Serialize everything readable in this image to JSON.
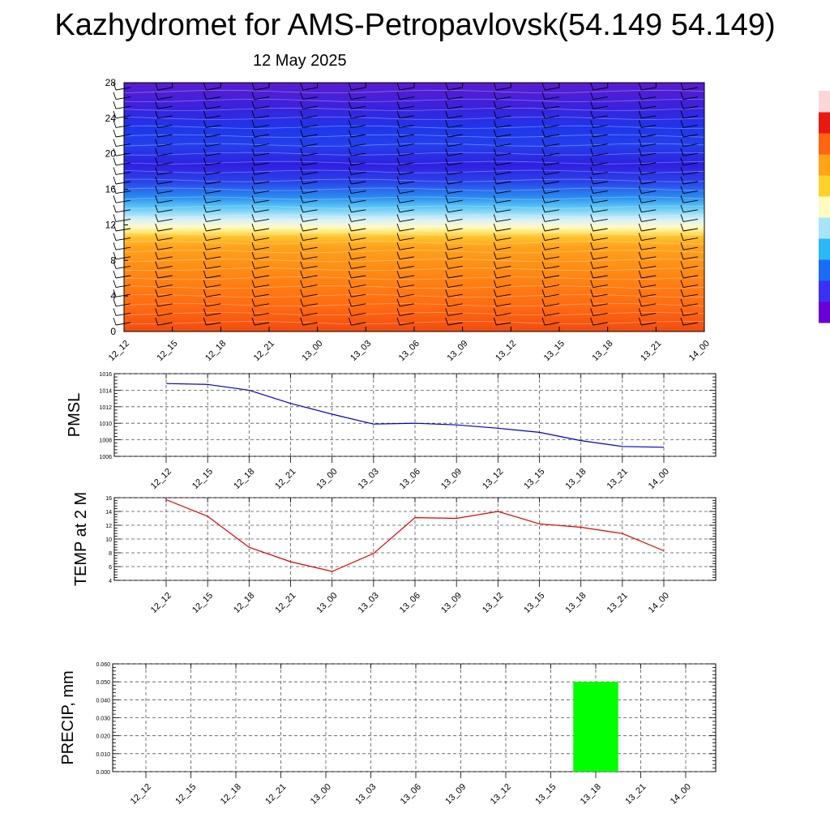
{
  "header": {
    "title": "Kazhydromet for AMS-Petropavlovsk(54.149 54.149)",
    "subtitle": "12 May 2025"
  },
  "time_labels": [
    "12_12",
    "12_15",
    "12_18",
    "12_21",
    "13_00",
    "13_03",
    "13_06",
    "13_09",
    "13_12",
    "13_15",
    "13_18",
    "13_21",
    "14_00"
  ],
  "chart_data": [
    {
      "type": "heatmap",
      "name": "cross-section",
      "x_categories": [
        "12_12",
        "12_15",
        "12_18",
        "12_21",
        "13_00",
        "13_03",
        "13_06",
        "13_09",
        "13_12",
        "13_15",
        "13_18",
        "13_21",
        "14_00"
      ],
      "ylim": [
        0,
        28
      ],
      "yticks": [
        0,
        4,
        8,
        12,
        16,
        20,
        24,
        28
      ],
      "colorbar": [
        "#6a00d8",
        "#3a32f0",
        "#1a6cf5",
        "#2cb8f5",
        "#a8e4f8",
        "#fffbbf",
        "#ffd12a",
        "#ffa319",
        "#ff6410",
        "#e8190f",
        "#fbd6d6"
      ],
      "colors": {
        "cold": "#2020e8",
        "warm": "#ff8a10",
        "freezing_line": "#fff7b0"
      }
    },
    {
      "type": "line",
      "name": "pmsl",
      "ylabel": "PMSL",
      "categories": [
        "12_12",
        "12_15",
        "12_18",
        "12_21",
        "13_00",
        "13_03",
        "13_06",
        "13_09",
        "13_12",
        "13_15",
        "13_18",
        "13_21",
        "14_00"
      ],
      "series": [
        {
          "values": [
            1014.8,
            1014.7,
            1014.0,
            1012.4,
            1011.1,
            1009.9,
            1010.0,
            1009.8,
            1009.4,
            1008.9,
            1007.9,
            1007.2,
            1007.1
          ],
          "color": "#0000cc"
        }
      ],
      "ylim": [
        1006,
        1016
      ],
      "yticks": [
        "1006",
        "1008",
        "1010",
        "1012",
        "1014",
        "1016"
      ],
      "grid": true
    },
    {
      "type": "line",
      "name": "temp",
      "ylabel": "TEMP at 2 M",
      "categories": [
        "12_12",
        "12_15",
        "12_18",
        "12_21",
        "13_00",
        "13_03",
        "13_06",
        "13_09",
        "13_12",
        "13_15",
        "13_18",
        "13_21",
        "14_00"
      ],
      "series": [
        {
          "values": [
            15.7,
            13.3,
            8.8,
            6.7,
            5.3,
            7.9,
            13.1,
            13.0,
            14.0,
            12.2,
            11.7,
            10.8,
            8.3
          ],
          "color": "#dd0000"
        }
      ],
      "ylim": [
        4,
        16
      ],
      "yticks": [
        "4",
        "6",
        "8",
        "10",
        "12",
        "14",
        "16"
      ],
      "grid": true
    },
    {
      "type": "bar",
      "name": "precip",
      "ylabel": "PRECIP, mm",
      "categories": [
        "12_12",
        "12_15",
        "12_18",
        "12_21",
        "13_00",
        "13_03",
        "13_06",
        "13_09",
        "13_12",
        "13_15",
        "13_18",
        "13_21",
        "14_00"
      ],
      "values": [
        0,
        0,
        0,
        0,
        0,
        0,
        0,
        0,
        0,
        0,
        0.05,
        0,
        0
      ],
      "ylim": [
        0,
        0.06
      ],
      "yticks": [
        "0.000",
        "0.010",
        "0.020",
        "0.030",
        "0.040",
        "0.050",
        "0.060"
      ],
      "bar_color": "#00ff00",
      "grid": true
    }
  ]
}
